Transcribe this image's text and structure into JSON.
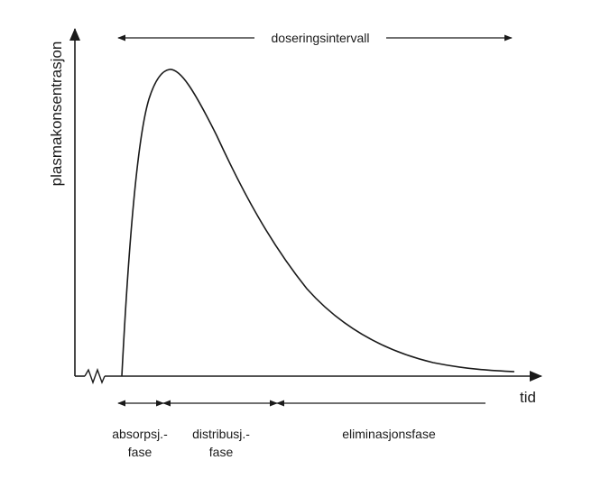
{
  "diagram": {
    "y_axis_label": "plasmakonsentrasjon",
    "x_axis_label": "tid",
    "top_interval_label": "doseringsintervall",
    "phases": [
      {
        "line1": "absorpsj.-",
        "line2": "fase"
      },
      {
        "line1": "distribusj.-",
        "line2": "fase"
      },
      {
        "line1": "eliminasjonsfase",
        "line2": ""
      }
    ]
  },
  "colors": {
    "ink": "#1a1a1a",
    "background": "#ffffff"
  }
}
